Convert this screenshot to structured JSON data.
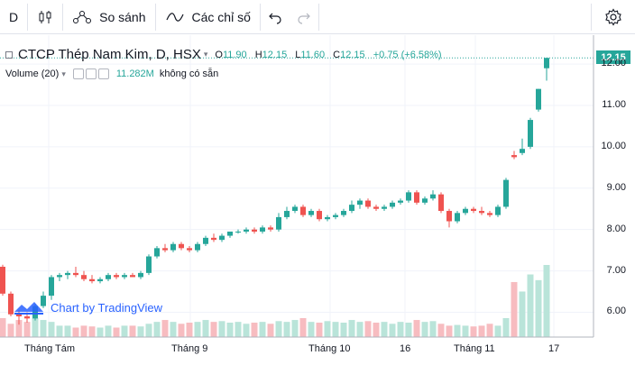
{
  "toolbar": {
    "interval": "D",
    "compare_label": "So sánh",
    "indicators_label": "Các chỉ số",
    "icons": [
      "candles-icon",
      "compare-icon",
      "indicators-icon",
      "undo-icon",
      "redo-icon",
      "settings-icon"
    ]
  },
  "legend": {
    "symbol": "CTCP Thép Nam Kim, D, HSX",
    "open_key": "O",
    "open": "11.90",
    "high_key": "H",
    "high": "12.15",
    "low_key": "L",
    "low": "11.60",
    "close_key": "C",
    "close": "12.15",
    "change": "+0.75 (+6.58%)"
  },
  "volume": {
    "label": "Volume (20)",
    "value": "11.282M",
    "na_text": "không có sẵn"
  },
  "watermark": "Chart by TradingView",
  "last_price": "12.15",
  "colors": {
    "up": "#26a69a",
    "down": "#ef5350",
    "up_vol": "#b9e4d9",
    "down_vol": "#f7bcc0"
  },
  "chart_data": {
    "type": "candlestick",
    "y_ticks": [
      "12.00",
      "11.00",
      "10.00",
      "9.00",
      "8.00",
      "7.00",
      "6.00"
    ],
    "y_range": [
      5.4,
      12.7
    ],
    "x_ticks": [
      "Tháng Tám",
      "Tháng 9",
      "Tháng 10",
      "16",
      "Tháng 11",
      "17"
    ],
    "candles": [
      [
        7.1,
        7.15,
        6.4,
        6.45
      ],
      [
        6.45,
        6.5,
        5.9,
        5.95
      ],
      [
        5.95,
        6.05,
        5.7,
        5.9
      ],
      [
        5.9,
        6.0,
        5.75,
        5.85
      ],
      [
        5.85,
        6.2,
        5.8,
        6.15
      ],
      [
        6.15,
        6.5,
        6.1,
        6.4
      ],
      [
        6.4,
        6.9,
        6.3,
        6.85
      ],
      [
        6.85,
        6.95,
        6.75,
        6.9
      ],
      [
        6.9,
        7.0,
        6.8,
        6.95
      ],
      [
        6.95,
        7.1,
        6.85,
        6.9
      ],
      [
        6.9,
        7.0,
        6.75,
        6.8
      ],
      [
        6.8,
        6.9,
        6.7,
        6.75
      ],
      [
        6.75,
        6.85,
        6.7,
        6.8
      ],
      [
        6.8,
        6.95,
        6.75,
        6.9
      ],
      [
        6.9,
        6.95,
        6.8,
        6.85
      ],
      [
        6.85,
        6.95,
        6.8,
        6.9
      ],
      [
        6.9,
        6.95,
        6.85,
        6.85
      ],
      [
        6.85,
        7.0,
        6.8,
        6.95
      ],
      [
        6.95,
        7.4,
        6.9,
        7.35
      ],
      [
        7.35,
        7.6,
        7.3,
        7.55
      ],
      [
        7.55,
        7.65,
        7.45,
        7.5
      ],
      [
        7.5,
        7.7,
        7.45,
        7.65
      ],
      [
        7.65,
        7.7,
        7.5,
        7.55
      ],
      [
        7.55,
        7.6,
        7.45,
        7.5
      ],
      [
        7.5,
        7.7,
        7.45,
        7.65
      ],
      [
        7.65,
        7.85,
        7.6,
        7.8
      ],
      [
        7.8,
        7.9,
        7.7,
        7.75
      ],
      [
        7.75,
        7.9,
        7.7,
        7.85
      ],
      [
        7.85,
        7.95,
        7.8,
        7.95
      ],
      [
        7.95,
        8.0,
        7.9,
        7.95
      ],
      [
        7.95,
        8.05,
        7.9,
        8.0
      ],
      [
        8.0,
        8.05,
        7.9,
        7.95
      ],
      [
        7.95,
        8.1,
        7.9,
        8.05
      ],
      [
        8.05,
        8.1,
        7.95,
        8.0
      ],
      [
        8.0,
        8.4,
        7.95,
        8.3
      ],
      [
        8.3,
        8.55,
        8.25,
        8.45
      ],
      [
        8.45,
        8.6,
        8.4,
        8.55
      ],
      [
        8.55,
        8.6,
        8.3,
        8.35
      ],
      [
        8.35,
        8.5,
        8.3,
        8.45
      ],
      [
        8.45,
        8.5,
        8.2,
        8.25
      ],
      [
        8.25,
        8.35,
        8.2,
        8.3
      ],
      [
        8.3,
        8.4,
        8.25,
        8.35
      ],
      [
        8.35,
        8.5,
        8.3,
        8.45
      ],
      [
        8.45,
        8.7,
        8.4,
        8.6
      ],
      [
        8.6,
        8.75,
        8.5,
        8.7
      ],
      [
        8.7,
        8.75,
        8.5,
        8.55
      ],
      [
        8.55,
        8.6,
        8.45,
        8.5
      ],
      [
        8.5,
        8.6,
        8.45,
        8.55
      ],
      [
        8.55,
        8.7,
        8.5,
        8.65
      ],
      [
        8.65,
        8.75,
        8.6,
        8.7
      ],
      [
        8.7,
        8.95,
        8.65,
        8.9
      ],
      [
        8.9,
        8.95,
        8.6,
        8.65
      ],
      [
        8.65,
        8.8,
        8.6,
        8.75
      ],
      [
        8.75,
        8.95,
        8.7,
        8.85
      ],
      [
        8.85,
        8.9,
        8.4,
        8.45
      ],
      [
        8.45,
        8.5,
        8.05,
        8.2
      ],
      [
        8.2,
        8.45,
        8.15,
        8.4
      ],
      [
        8.4,
        8.55,
        8.35,
        8.5
      ],
      [
        8.5,
        8.55,
        8.4,
        8.45
      ],
      [
        8.45,
        8.55,
        8.35,
        8.4
      ],
      [
        8.4,
        8.45,
        8.3,
        8.35
      ],
      [
        8.35,
        8.6,
        8.3,
        8.55
      ],
      [
        8.55,
        9.25,
        8.5,
        9.2
      ],
      [
        9.8,
        9.9,
        9.7,
        9.75
      ],
      [
        9.85,
        10.2,
        9.8,
        9.95
      ],
      [
        10.0,
        10.7,
        9.95,
        10.65
      ],
      [
        10.9,
        11.4,
        10.85,
        11.4
      ],
      [
        11.9,
        12.15,
        11.6,
        12.15
      ]
    ],
    "volumes": [
      0.5,
      0.35,
      0.45,
      0.4,
      0.5,
      0.45,
      0.4,
      0.3,
      0.3,
      0.25,
      0.3,
      0.28,
      0.25,
      0.3,
      0.25,
      0.3,
      0.3,
      0.28,
      0.35,
      0.4,
      0.45,
      0.4,
      0.35,
      0.38,
      0.4,
      0.45,
      0.4,
      0.42,
      0.38,
      0.4,
      0.35,
      0.38,
      0.4,
      0.35,
      0.42,
      0.4,
      0.45,
      0.5,
      0.4,
      0.38,
      0.42,
      0.4,
      0.38,
      0.45,
      0.4,
      0.42,
      0.38,
      0.4,
      0.35,
      0.4,
      0.38,
      0.45,
      0.4,
      0.42,
      0.35,
      0.3,
      0.32,
      0.3,
      0.28,
      0.3,
      0.35,
      0.3,
      0.5,
      1.45,
      1.2,
      1.65,
      1.5,
      1.9
    ]
  }
}
